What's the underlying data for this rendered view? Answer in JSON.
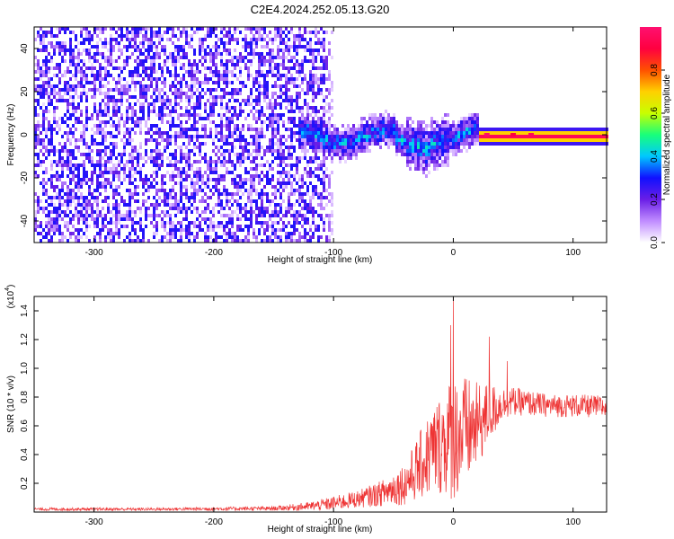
{
  "title": "C2E4.2024.252.05.13.G20",
  "chart_data": [
    {
      "type": "heatmap",
      "xlabel": "Height of straight line (km)",
      "ylabel": "Frequency (Hz)",
      "xlim": [
        -350,
        128
      ],
      "ylim": [
        -50,
        50
      ],
      "xticks": [
        -300,
        -200,
        -100,
        0,
        100
      ],
      "yticks": [
        -40,
        -20,
        0,
        20,
        40
      ],
      "colorbar": {
        "label": "Normalized spectral amplitude",
        "range": [
          0,
          1
        ],
        "ticks": [
          0.0,
          0.2,
          0.4,
          0.6,
          0.8
        ],
        "tick_labels": [
          "0.0",
          "0.2",
          "0.4",
          "0.6",
          "0.8"
        ],
        "colors": [
          "#ffffff",
          "#c08cff",
          "#6a1ee6",
          "#1010ff",
          "#00c8ff",
          "#18ff7a",
          "#c8ff00",
          "#ffd000",
          "#ff5000",
          "#ff0040",
          "#ff1070"
        ]
      },
      "regions": [
        {
          "x_range": [
            -350,
            -110
          ],
          "description": "broadband noise",
          "amplitude": 0.1
        },
        {
          "x_range": [
            -130,
            20
          ],
          "freq_center": 0,
          "freq_halfwidth": 9,
          "amplitude": 0.35
        },
        {
          "x_range": [
            20,
            128
          ],
          "freq_center": 0,
          "freq_halfwidth": 2,
          "amplitude": 0.95
        }
      ],
      "hotspots": [
        {
          "x": 28,
          "y": 0,
          "amplitude": 0.98
        },
        {
          "x": 50,
          "y": 0,
          "amplitude": 0.9
        },
        {
          "x": 65,
          "y": 0,
          "amplitude": 0.95
        }
      ]
    },
    {
      "type": "line",
      "xlabel": "Height of straight line (km)",
      "ylabel": "SNR (10 * v/v)",
      "scale_note": "(x10",
      "scale_exp": "4",
      "scale_close": ")",
      "xlim": [
        -350,
        128
      ],
      "ylim": [
        0,
        1.5
      ],
      "xticks": [
        -300,
        -200,
        -100,
        0,
        100
      ],
      "yticks": [
        0.2,
        0.4,
        0.6,
        0.8,
        1.0,
        1.2,
        1.4
      ],
      "ytick_labels": [
        "0.2",
        "0.4",
        "0.6",
        "0.8",
        "1.0",
        "1.2",
        "1.4"
      ],
      "series": [
        {
          "color": "#ee3333",
          "x": [
            -350,
            -250,
            -150,
            -120,
            -100,
            -80,
            -60,
            -40,
            -30,
            -20,
            -10,
            0,
            10,
            20,
            30,
            40,
            50,
            60,
            80,
            100,
            128
          ],
          "mean": [
            0.02,
            0.02,
            0.025,
            0.04,
            0.06,
            0.09,
            0.13,
            0.2,
            0.3,
            0.4,
            0.48,
            0.52,
            0.55,
            0.6,
            0.68,
            0.75,
            0.77,
            0.76,
            0.74,
            0.74,
            0.73
          ],
          "spread": [
            0.01,
            0.01,
            0.015,
            0.03,
            0.05,
            0.06,
            0.09,
            0.15,
            0.22,
            0.3,
            0.36,
            0.45,
            0.4,
            0.3,
            0.22,
            0.12,
            0.1,
            0.09,
            0.08,
            0.08,
            0.08
          ],
          "peaks": [
            {
              "x": -2,
              "y": 1.3
            },
            {
              "x": 0,
              "y": 1.49
            },
            {
              "x": 30,
              "y": 1.22
            },
            {
              "x": 45,
              "y": 1.05
            }
          ]
        }
      ]
    }
  ]
}
